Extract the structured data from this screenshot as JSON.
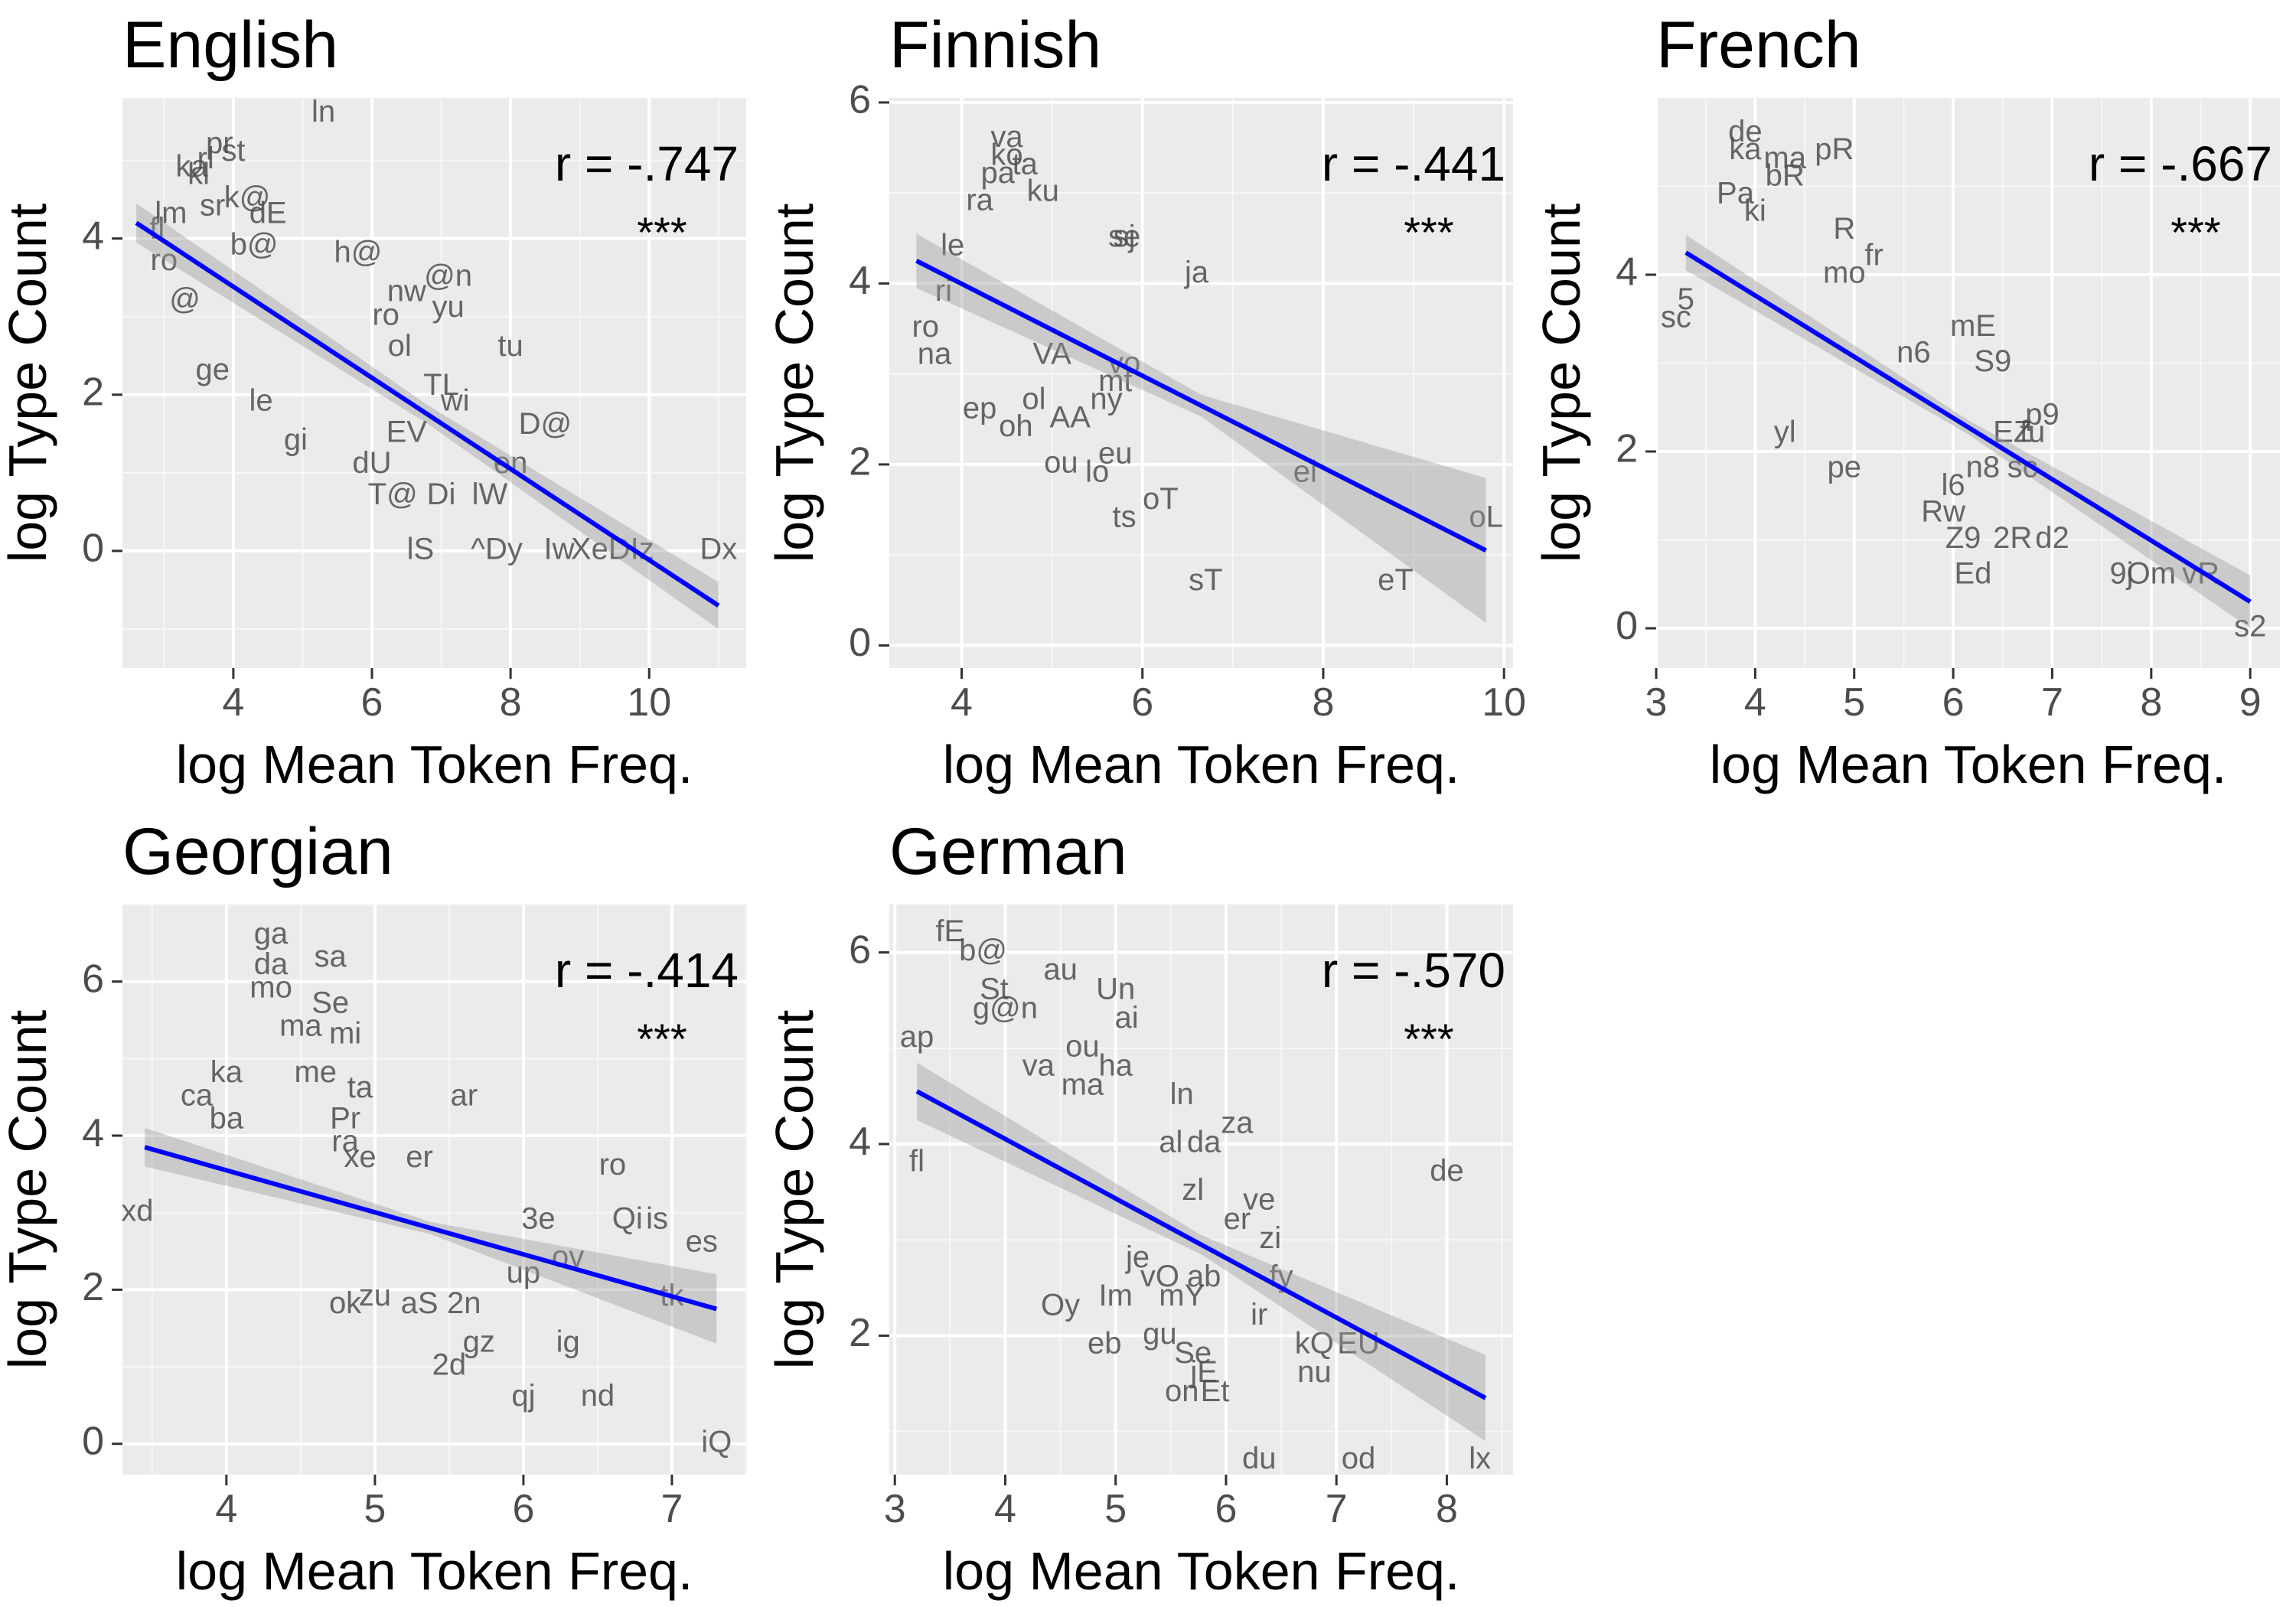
{
  "chart_data": [
    {
      "type": "scatter",
      "title": "English",
      "xlabel": "log Mean Token Freq.",
      "ylabel": "log Type Count",
      "xlim": [
        2.4,
        11.4
      ],
      "ylim": [
        -1.5,
        5.8
      ],
      "xticks": [
        4,
        6,
        8,
        10
      ],
      "yticks": [
        0,
        2,
        4
      ],
      "grid": true,
      "annotation_r": "r = -.747",
      "annotation_sig": "***",
      "regression": {
        "x": [
          2.6,
          11.0
        ],
        "y": [
          4.2,
          -0.7
        ],
        "ci_halfwidth": [
          0.25,
          0.12,
          0.3
        ]
      },
      "points": [
        {
          "label": "ln",
          "x": 5.3,
          "y": 5.6
        },
        {
          "label": "pr",
          "x": 3.8,
          "y": 5.2
        },
        {
          "label": "st",
          "x": 4.0,
          "y": 5.1
        },
        {
          "label": "rl",
          "x": 3.6,
          "y": 5.0
        },
        {
          "label": "ka",
          "x": 3.4,
          "y": 4.9
        },
        {
          "label": "kl",
          "x": 3.5,
          "y": 4.8
        },
        {
          "label": "sr",
          "x": 3.7,
          "y": 4.4
        },
        {
          "label": "k@",
          "x": 4.2,
          "y": 4.5
        },
        {
          "label": "dE",
          "x": 4.5,
          "y": 4.3
        },
        {
          "label": "lm",
          "x": 3.1,
          "y": 4.3
        },
        {
          "label": "fl",
          "x": 2.9,
          "y": 4.1
        },
        {
          "label": "b@",
          "x": 4.3,
          "y": 3.9
        },
        {
          "label": "h@",
          "x": 5.8,
          "y": 3.8
        },
        {
          "label": "ro",
          "x": 3.0,
          "y": 3.7
        },
        {
          "label": "@n",
          "x": 7.1,
          "y": 3.5
        },
        {
          "label": "yu",
          "x": 7.1,
          "y": 3.1
        },
        {
          "label": "nw",
          "x": 6.5,
          "y": 3.3
        },
        {
          "label": "@",
          "x": 3.3,
          "y": 3.2
        },
        {
          "label": "ro",
          "x": 6.2,
          "y": 3.0
        },
        {
          "label": "ol",
          "x": 6.4,
          "y": 2.6
        },
        {
          "label": "tu",
          "x": 8.0,
          "y": 2.6
        },
        {
          "label": "ge",
          "x": 3.7,
          "y": 2.3
        },
        {
          "label": "le",
          "x": 4.4,
          "y": 1.9
        },
        {
          "label": "TL",
          "x": 7.0,
          "y": 2.1
        },
        {
          "label": "wi",
          "x": 7.2,
          "y": 1.9
        },
        {
          "label": "D@",
          "x": 8.5,
          "y": 1.6
        },
        {
          "label": "en",
          "x": 8.0,
          "y": 1.1
        },
        {
          "label": "dU",
          "x": 6.0,
          "y": 1.1
        },
        {
          "label": "T@",
          "x": 6.3,
          "y": 0.7
        },
        {
          "label": "Di",
          "x": 7.0,
          "y": 0.7
        },
        {
          "label": "lW",
          "x": 7.7,
          "y": 0.7
        },
        {
          "label": "lS",
          "x": 6.7,
          "y": 0.0
        },
        {
          "label": "^Dy",
          "x": 7.8,
          "y": 0.0
        },
        {
          "label": "Iw",
          "x": 8.7,
          "y": 0.0
        },
        {
          "label": "XeD",
          "x": 9.3,
          "y": 0.0
        },
        {
          "label": "Iz",
          "x": 9.9,
          "y": 0.0
        },
        {
          "label": "Dx",
          "x": 11.0,
          "y": 0.0
        },
        {
          "label": "gi",
          "x": 4.9,
          "y": 1.4
        },
        {
          "label": "EV",
          "x": 6.5,
          "y": 1.5
        }
      ]
    },
    {
      "type": "scatter",
      "title": "Finnish",
      "xlabel": "log Mean Token Freq.",
      "ylabel": "log Type Count",
      "xlim": [
        3.2,
        10.1
      ],
      "ylim": [
        -0.25,
        6.05
      ],
      "xticks": [
        4,
        6,
        8,
        10
      ],
      "yticks": [
        0,
        2,
        4,
        6
      ],
      "grid": true,
      "annotation_r": "r = -.441",
      "annotation_sig": "***",
      "regression": {
        "x": [
          3.5,
          9.8
        ],
        "y": [
          4.25,
          1.05
        ],
        "ci_halfwidth": [
          0.3,
          0.12,
          0.8
        ]
      },
      "points": [
        {
          "label": "va",
          "x": 4.5,
          "y": 5.6
        },
        {
          "label": "ko",
          "x": 4.5,
          "y": 5.4
        },
        {
          "label": "ta",
          "x": 4.7,
          "y": 5.3
        },
        {
          "label": "pa",
          "x": 4.4,
          "y": 5.2
        },
        {
          "label": "ku",
          "x": 4.9,
          "y": 5.0
        },
        {
          "label": "ra",
          "x": 4.2,
          "y": 4.9
        },
        {
          "label": "sj",
          "x": 5.8,
          "y": 4.5
        },
        {
          "label": "se",
          "x": 5.8,
          "y": 4.5
        },
        {
          "label": "ja",
          "x": 6.6,
          "y": 4.1
        },
        {
          "label": "le",
          "x": 3.9,
          "y": 4.4
        },
        {
          "label": "ri",
          "x": 3.8,
          "y": 3.9
        },
        {
          "label": "ro",
          "x": 3.6,
          "y": 3.5
        },
        {
          "label": "na",
          "x": 3.7,
          "y": 3.2
        },
        {
          "label": "VA",
          "x": 5.0,
          "y": 3.2
        },
        {
          "label": "vo",
          "x": 5.8,
          "y": 3.1
        },
        {
          "label": "mt",
          "x": 5.7,
          "y": 2.9
        },
        {
          "label": "ny",
          "x": 5.6,
          "y": 2.7
        },
        {
          "label": "ol",
          "x": 4.8,
          "y": 2.7
        },
        {
          "label": "AA",
          "x": 5.2,
          "y": 2.5
        },
        {
          "label": "ep",
          "x": 4.2,
          "y": 2.6
        },
        {
          "label": "oh",
          "x": 4.6,
          "y": 2.4
        },
        {
          "label": "eu",
          "x": 5.7,
          "y": 2.1
        },
        {
          "label": "ou",
          "x": 5.1,
          "y": 2.0
        },
        {
          "label": "lo",
          "x": 5.5,
          "y": 1.9
        },
        {
          "label": "ei",
          "x": 7.8,
          "y": 1.9
        },
        {
          "label": "oT",
          "x": 6.2,
          "y": 1.6
        },
        {
          "label": "ts",
          "x": 5.8,
          "y": 1.4
        },
        {
          "label": "sT",
          "x": 6.7,
          "y": 0.7
        },
        {
          "label": "eT",
          "x": 8.8,
          "y": 0.7
        },
        {
          "label": "oL",
          "x": 9.8,
          "y": 1.4
        }
      ]
    },
    {
      "type": "scatter",
      "title": "French",
      "xlabel": "log Mean Token Freq.",
      "ylabel": "log Type Count",
      "xlim": [
        3.0,
        9.3
      ],
      "ylim": [
        -0.45,
        6.0
      ],
      "xticks": [
        3,
        4,
        5,
        6,
        7,
        8,
        9
      ],
      "yticks": [
        0,
        2,
        4
      ],
      "grid": true,
      "annotation_r": "r = -.667",
      "annotation_sig": "***",
      "regression": {
        "x": [
          3.3,
          9.0
        ],
        "y": [
          4.25,
          0.3
        ],
        "ci_halfwidth": [
          0.2,
          0.08,
          0.3
        ]
      },
      "points": [
        {
          "label": "de",
          "x": 3.9,
          "y": 5.6
        },
        {
          "label": "ka",
          "x": 3.9,
          "y": 5.4
        },
        {
          "label": "ma",
          "x": 4.3,
          "y": 5.3
        },
        {
          "label": "pR",
          "x": 4.8,
          "y": 5.4
        },
        {
          "label": "bR",
          "x": 4.3,
          "y": 5.1
        },
        {
          "label": "Pa",
          "x": 3.8,
          "y": 4.9
        },
        {
          "label": "ki",
          "x": 4.0,
          "y": 4.7
        },
        {
          "label": "R",
          "x": 4.9,
          "y": 4.5
        },
        {
          "label": "fr",
          "x": 5.2,
          "y": 4.2
        },
        {
          "label": "mo",
          "x": 4.9,
          "y": 4.0
        },
        {
          "label": "sc",
          "x": 3.2,
          "y": 3.5
        },
        {
          "label": "5",
          "x": 3.3,
          "y": 3.7
        },
        {
          "label": "mE",
          "x": 6.2,
          "y": 3.4
        },
        {
          "label": "S9",
          "x": 6.4,
          "y": 3.0
        },
        {
          "label": "n6",
          "x": 5.6,
          "y": 3.1
        },
        {
          "label": "p9",
          "x": 6.9,
          "y": 2.4
        },
        {
          "label": "fu",
          "x": 6.8,
          "y": 2.2
        },
        {
          "label": "EZ",
          "x": 6.6,
          "y": 2.2
        },
        {
          "label": "n8",
          "x": 6.3,
          "y": 1.8
        },
        {
          "label": "sc",
          "x": 6.7,
          "y": 1.8
        },
        {
          "label": "yl",
          "x": 4.3,
          "y": 2.2
        },
        {
          "label": "pe",
          "x": 4.9,
          "y": 1.8
        },
        {
          "label": "l6",
          "x": 6.0,
          "y": 1.6
        },
        {
          "label": "Rw",
          "x": 5.9,
          "y": 1.3
        },
        {
          "label": "Z9",
          "x": 6.1,
          "y": 1.0
        },
        {
          "label": "2R",
          "x": 6.6,
          "y": 1.0
        },
        {
          "label": "d2",
          "x": 7.0,
          "y": 1.0
        },
        {
          "label": "Ed",
          "x": 6.2,
          "y": 0.6
        },
        {
          "label": "9j",
          "x": 7.7,
          "y": 0.6
        },
        {
          "label": "Om",
          "x": 8.0,
          "y": 0.6
        },
        {
          "label": "vR",
          "x": 8.5,
          "y": 0.6
        },
        {
          "label": "s2",
          "x": 9.0,
          "y": 0.0
        }
      ]
    },
    {
      "type": "scatter",
      "title": "Georgian",
      "xlabel": "log Mean Token Freq.",
      "ylabel": "log Type Count",
      "xlim": [
        3.3,
        7.5
      ],
      "ylim": [
        -0.4,
        7.0
      ],
      "xticks": [
        4,
        5,
        6,
        7
      ],
      "yticks": [
        0,
        2,
        4,
        6
      ],
      "grid": true,
      "annotation_r": "r = -.414",
      "annotation_sig": "***",
      "regression": {
        "x": [
          3.45,
          7.3
        ],
        "y": [
          3.85,
          1.75
        ],
        "ci_halfwidth": [
          0.25,
          0.08,
          0.45
        ]
      },
      "points": [
        {
          "label": "ga",
          "x": 4.3,
          "y": 6.6
        },
        {
          "label": "da",
          "x": 4.3,
          "y": 6.2
        },
        {
          "label": "sa",
          "x": 4.7,
          "y": 6.3
        },
        {
          "label": "mo",
          "x": 4.3,
          "y": 5.9
        },
        {
          "label": "Se",
          "x": 4.7,
          "y": 5.7
        },
        {
          "label": "ma",
          "x": 4.5,
          "y": 5.4
        },
        {
          "label": "mi",
          "x": 4.8,
          "y": 5.3
        },
        {
          "label": "ka",
          "x": 4.0,
          "y": 4.8
        },
        {
          "label": "me",
          "x": 4.6,
          "y": 4.8
        },
        {
          "label": "ta",
          "x": 4.9,
          "y": 4.6
        },
        {
          "label": "ca",
          "x": 3.8,
          "y": 4.5
        },
        {
          "label": "ar",
          "x": 5.6,
          "y": 4.5
        },
        {
          "label": "ba",
          "x": 4.0,
          "y": 4.2
        },
        {
          "label": "Pr",
          "x": 4.8,
          "y": 4.2
        },
        {
          "label": "ra",
          "x": 4.8,
          "y": 3.9
        },
        {
          "label": "er",
          "x": 5.3,
          "y": 3.7
        },
        {
          "label": "xe",
          "x": 4.9,
          "y": 3.7
        },
        {
          "label": "ro",
          "x": 6.6,
          "y": 3.6
        },
        {
          "label": "Qi",
          "x": 6.7,
          "y": 2.9
        },
        {
          "label": "is",
          "x": 6.9,
          "y": 2.9
        },
        {
          "label": "es",
          "x": 7.2,
          "y": 2.6
        },
        {
          "label": "3e",
          "x": 6.1,
          "y": 2.9
        },
        {
          "label": "ov",
          "x": 6.3,
          "y": 2.4
        },
        {
          "label": "up",
          "x": 6.0,
          "y": 2.2
        },
        {
          "label": "tk",
          "x": 7.0,
          "y": 1.9
        },
        {
          "label": "zu",
          "x": 5.0,
          "y": 1.9
        },
        {
          "label": "aS",
          "x": 5.3,
          "y": 1.8
        },
        {
          "label": "2n",
          "x": 5.6,
          "y": 1.8
        },
        {
          "label": "ok",
          "x": 4.8,
          "y": 1.8
        },
        {
          "label": "gz",
          "x": 5.7,
          "y": 1.3
        },
        {
          "label": "ig",
          "x": 6.3,
          "y": 1.3
        },
        {
          "label": "2d",
          "x": 5.5,
          "y": 1.0
        },
        {
          "label": "qj",
          "x": 6.0,
          "y": 0.6
        },
        {
          "label": "nd",
          "x": 6.5,
          "y": 0.6
        },
        {
          "label": "iQ",
          "x": 7.3,
          "y": 0.0
        },
        {
          "label": "xd",
          "x": 3.4,
          "y": 3.0
        }
      ]
    },
    {
      "type": "scatter",
      "title": "German",
      "xlabel": "log Mean Token Freq.",
      "ylabel": "log Type Count",
      "xlim": [
        2.95,
        8.6
      ],
      "ylim": [
        0.55,
        6.5
      ],
      "xticks": [
        3,
        4,
        5,
        6,
        7,
        8
      ],
      "yticks": [
        2,
        4,
        6
      ],
      "grid": true,
      "annotation_r": "r = -.570",
      "annotation_sig": "***",
      "regression": {
        "x": [
          3.2,
          8.35
        ],
        "y": [
          4.55,
          1.35
        ],
        "ci_halfwidth": [
          0.3,
          0.1,
          0.45
        ]
      },
      "points": [
        {
          "label": "fE",
          "x": 3.5,
          "y": 6.2
        },
        {
          "label": "b@",
          "x": 3.8,
          "y": 6.0
        },
        {
          "label": "au",
          "x": 4.5,
          "y": 5.8
        },
        {
          "label": "Un",
          "x": 5.0,
          "y": 5.6
        },
        {
          "label": "St",
          "x": 3.9,
          "y": 5.6
        },
        {
          "label": "g@n",
          "x": 4.0,
          "y": 5.4
        },
        {
          "label": "ai",
          "x": 5.1,
          "y": 5.3
        },
        {
          "label": "ap",
          "x": 3.2,
          "y": 5.1
        },
        {
          "label": "ou",
          "x": 4.7,
          "y": 5.0
        },
        {
          "label": "ha",
          "x": 5.0,
          "y": 4.8
        },
        {
          "label": "va",
          "x": 4.3,
          "y": 4.8
        },
        {
          "label": "ma",
          "x": 4.7,
          "y": 4.6
        },
        {
          "label": "ln",
          "x": 5.6,
          "y": 4.5
        },
        {
          "label": "za",
          "x": 6.1,
          "y": 4.2
        },
        {
          "label": "al",
          "x": 5.5,
          "y": 4.0
        },
        {
          "label": "da",
          "x": 5.8,
          "y": 4.0
        },
        {
          "label": "de",
          "x": 8.0,
          "y": 3.7
        },
        {
          "label": "fl",
          "x": 3.2,
          "y": 3.8
        },
        {
          "label": "ve",
          "x": 6.3,
          "y": 3.4
        },
        {
          "label": "zl",
          "x": 5.7,
          "y": 3.5
        },
        {
          "label": "er",
          "x": 6.1,
          "y": 3.2
        },
        {
          "label": "zi",
          "x": 6.4,
          "y": 3.0
        },
        {
          "label": "je",
          "x": 5.2,
          "y": 2.8
        },
        {
          "label": "vO",
          "x": 5.4,
          "y": 2.6
        },
        {
          "label": "fy",
          "x": 6.5,
          "y": 2.6
        },
        {
          "label": "ab",
          "x": 5.8,
          "y": 2.6
        },
        {
          "label": "Oy",
          "x": 4.5,
          "y": 2.3
        },
        {
          "label": "Im",
          "x": 5.0,
          "y": 2.4
        },
        {
          "label": "mY",
          "x": 5.6,
          "y": 2.4
        },
        {
          "label": "ir",
          "x": 6.3,
          "y": 2.2
        },
        {
          "label": "gu",
          "x": 5.4,
          "y": 2.0
        },
        {
          "label": "kQ",
          "x": 6.8,
          "y": 1.9
        },
        {
          "label": "EU",
          "x": 7.2,
          "y": 1.9
        },
        {
          "label": "eb",
          "x": 4.9,
          "y": 1.9
        },
        {
          "label": "Se",
          "x": 5.7,
          "y": 1.8
        },
        {
          "label": "nu",
          "x": 6.8,
          "y": 1.6
        },
        {
          "label": "jE",
          "x": 5.8,
          "y": 1.6
        },
        {
          "label": "on",
          "x": 5.6,
          "y": 1.4
        },
        {
          "label": "Et",
          "x": 5.9,
          "y": 1.4
        },
        {
          "label": "du",
          "x": 6.3,
          "y": 0.7
        },
        {
          "label": "od",
          "x": 7.2,
          "y": 0.7
        },
        {
          "label": "lx",
          "x": 8.3,
          "y": 0.7
        }
      ]
    }
  ]
}
